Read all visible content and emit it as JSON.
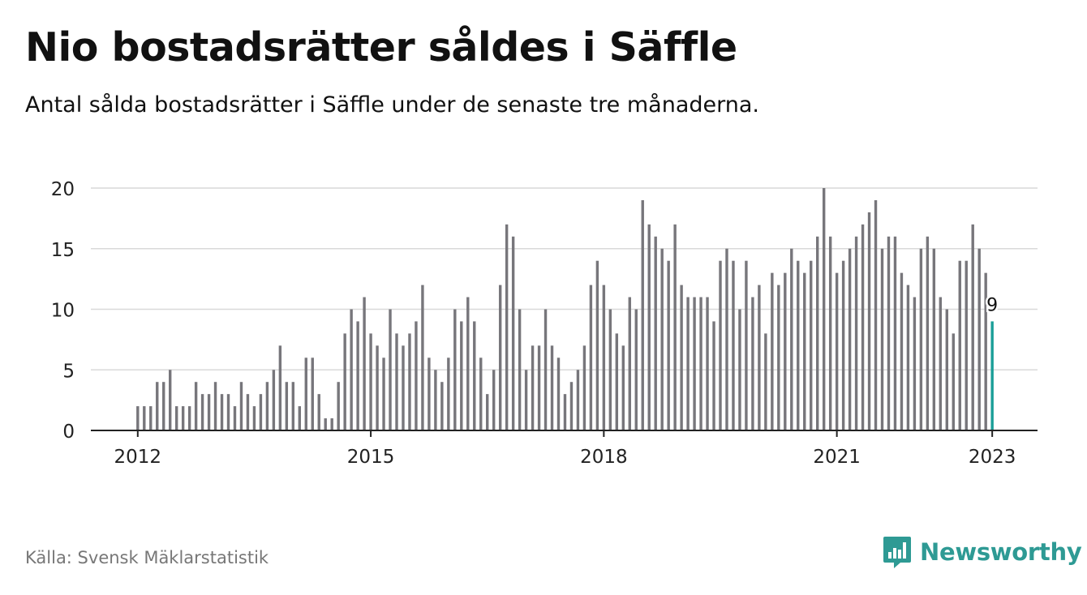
{
  "header": {
    "title": "Nio bostadsrätter såldes i Säffle",
    "subtitle": "Antal sålda bostadsrätter i Säffle under de senaste tre månaderna."
  },
  "footer": {
    "source": "Källa: Svensk Mäklarstatistik",
    "brand": "Newsworthy",
    "brand_icon": "bar-chart-speech-bubble-icon"
  },
  "colors": {
    "bar": "#77767b",
    "highlight": "#1a9e98",
    "grid": "#d9d9d9",
    "axis": "#222222",
    "brand": "#2e9a94"
  },
  "chart_data": {
    "type": "bar",
    "start": "2012-01",
    "frequency": "monthly",
    "values": [
      2,
      2,
      2,
      4,
      4,
      5,
      2,
      2,
      2,
      4,
      3,
      3,
      4,
      3,
      3,
      2,
      4,
      3,
      2,
      3,
      4,
      5,
      7,
      4,
      4,
      2,
      6,
      6,
      3,
      1,
      1,
      4,
      8,
      10,
      9,
      11,
      8,
      7,
      6,
      10,
      8,
      7,
      8,
      9,
      12,
      6,
      5,
      4,
      6,
      10,
      9,
      11,
      9,
      6,
      3,
      5,
      12,
      17,
      16,
      10,
      5,
      7,
      7,
      10,
      7,
      6,
      3,
      4,
      5,
      7,
      12,
      14,
      12,
      10,
      8,
      7,
      11,
      10,
      19,
      17,
      16,
      15,
      14,
      17,
      12,
      11,
      11,
      11,
      11,
      9,
      14,
      15,
      14,
      10,
      14,
      11,
      12,
      8,
      13,
      12,
      13,
      15,
      14,
      13,
      14,
      16,
      20,
      16,
      13,
      14,
      15,
      16,
      17,
      18,
      19,
      15,
      16,
      16,
      13,
      12,
      11,
      15,
      16,
      15,
      11,
      10,
      8,
      14,
      14,
      17,
      15,
      13,
      9
    ],
    "x_ticks": [
      "2012",
      "2015",
      "2018",
      "2021",
      "2023"
    ],
    "y_ticks": [
      0,
      5,
      10,
      15,
      20
    ],
    "ylim": [
      0,
      20
    ],
    "grid": true,
    "highlight_last": true,
    "last_label": "9",
    "xlabel": "",
    "ylabel": ""
  }
}
